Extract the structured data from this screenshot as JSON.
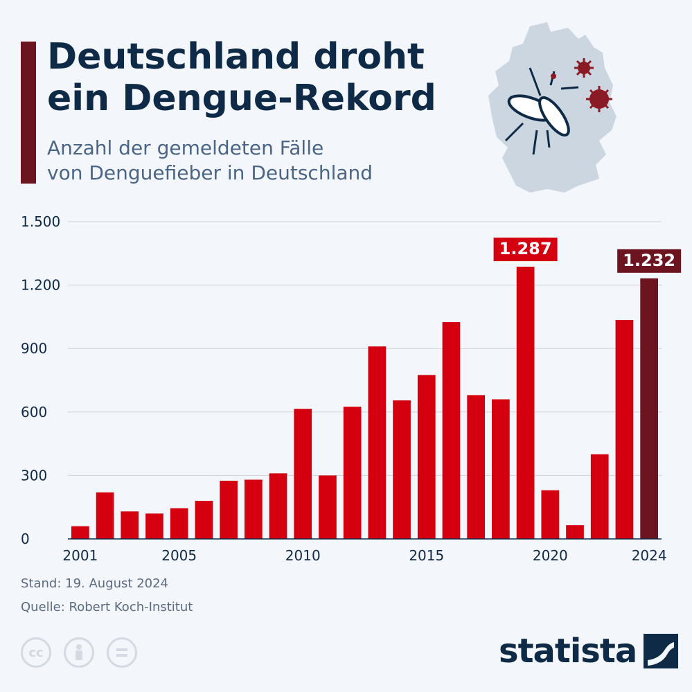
{
  "header": {
    "title_line1": "Deutschland droht",
    "title_line2": "ein Dengue-Rekord",
    "subtitle_line1": "Anzahl der gemeldeten Fälle",
    "subtitle_line2": "von Denguefieber in Deutschland"
  },
  "footer": {
    "stand": "Stand: 19. August 2024",
    "quelle": "Quelle: Robert Koch-Institut",
    "brand": "statista",
    "license_icons": [
      "cc-icon",
      "attribution-icon",
      "no-derivatives-icon"
    ]
  },
  "colors": {
    "bar": "#d40010",
    "bar_highlight": "#6d1421",
    "title": "#0e2a47",
    "accent": "#6d1421"
  },
  "chart_data": {
    "type": "bar",
    "title": "",
    "xlabel": "",
    "ylabel": "",
    "ylim": [
      0,
      1500
    ],
    "yticks": [
      0,
      300,
      600,
      900,
      1200,
      1500
    ],
    "ytick_labels": [
      "0",
      "300",
      "600",
      "900",
      "1.200",
      "1.500"
    ],
    "xtick_labels": [
      "2001",
      "2005",
      "2010",
      "2015",
      "2020",
      "2024"
    ],
    "grid": true,
    "categories": [
      2001,
      2002,
      2003,
      2004,
      2005,
      2006,
      2007,
      2008,
      2009,
      2010,
      2011,
      2012,
      2013,
      2014,
      2015,
      2016,
      2017,
      2018,
      2019,
      2020,
      2021,
      2022,
      2023,
      2024
    ],
    "values": [
      60,
      220,
      130,
      120,
      145,
      180,
      275,
      280,
      310,
      615,
      300,
      625,
      910,
      655,
      775,
      1025,
      680,
      660,
      1287,
      230,
      65,
      400,
      1035,
      1232
    ],
    "highlight_category": 2024,
    "data_labels": [
      {
        "category": 2019,
        "text": "1.287"
      },
      {
        "category": 2024,
        "text": "1.232"
      }
    ]
  }
}
